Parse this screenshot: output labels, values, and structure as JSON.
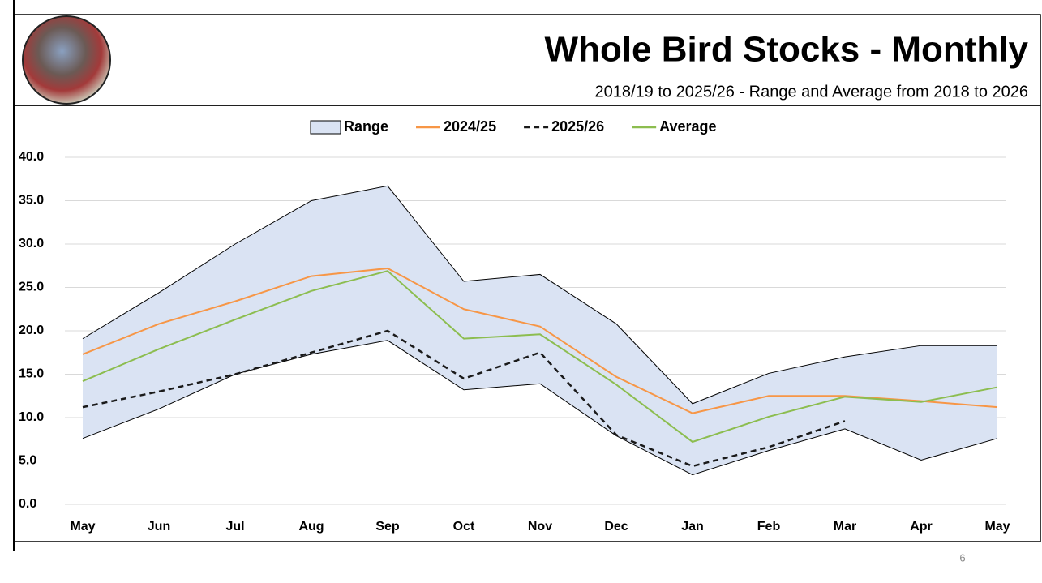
{
  "page_number": "6",
  "chart_data": {
    "type": "line",
    "title": "Whole Bird Stocks - Monthly",
    "subtitle": "2018/19 to 2025/26 - Range and Average from 2018 to 2026",
    "categories": [
      "May",
      "Jun",
      "Jul",
      "Aug",
      "Sep",
      "Oct",
      "Nov",
      "Dec",
      "Jan",
      "Feb",
      "Mar",
      "Apr",
      "May"
    ],
    "ylim": [
      0,
      40
    ],
    "yticks": [
      {
        "value": 0,
        "label": "0.0"
      },
      {
        "value": 5,
        "label": "5.0"
      },
      {
        "value": 10,
        "label": "10.0"
      },
      {
        "value": 15,
        "label": "15.0"
      },
      {
        "value": 20,
        "label": "20.0"
      },
      {
        "value": 25,
        "label": "25.0"
      },
      {
        "value": 30,
        "label": "30.0"
      },
      {
        "value": 35,
        "label": "35.0"
      },
      {
        "value": 40,
        "label": "40.0"
      }
    ],
    "grid": true,
    "legend": "top",
    "series": [
      {
        "name": "Range",
        "color": "#dae3f3",
        "style": "band",
        "high": [
          19.1,
          24.4,
          30.0,
          35.0,
          36.7,
          25.7,
          26.5,
          20.8,
          11.6,
          15.1,
          17.0,
          18.3,
          18.3
        ],
        "low": [
          7.6,
          11.0,
          15.0,
          17.3,
          18.9,
          13.2,
          13.9,
          7.9,
          3.4,
          6.2,
          8.7,
          5.1,
          7.6
        ]
      },
      {
        "name": "2024/25",
        "color": "#f79646",
        "style": "solid",
        "values": [
          17.3,
          20.8,
          23.4,
          26.3,
          27.2,
          22.5,
          20.5,
          14.7,
          10.5,
          12.5,
          12.5,
          11.9,
          11.2
        ]
      },
      {
        "name": "2025/26",
        "color": "#1a1a1a",
        "style": "dashed",
        "values": [
          11.2,
          13.0,
          15.0,
          17.5,
          20.0,
          14.5,
          17.5,
          8.0,
          4.4,
          6.6,
          9.6,
          null,
          null
        ]
      },
      {
        "name": "Average",
        "color": "#8cbd4f",
        "style": "solid",
        "values": [
          14.2,
          17.9,
          21.3,
          24.6,
          26.9,
          19.1,
          19.6,
          13.8,
          7.2,
          10.1,
          12.4,
          11.8,
          13.5
        ]
      }
    ]
  }
}
